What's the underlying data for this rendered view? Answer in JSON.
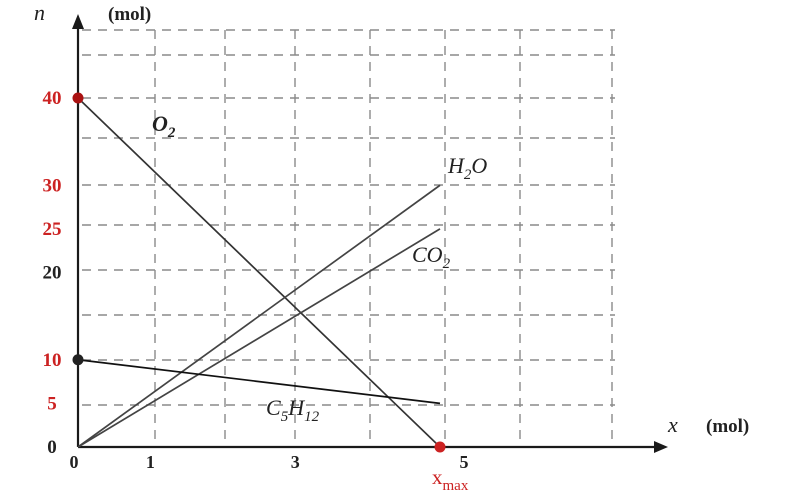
{
  "chart_data": {
    "type": "line",
    "title": "",
    "xlabel": "x",
    "xunit": "(mol)",
    "ylabel": "n",
    "yunit": "(mol)",
    "xlim": [
      0,
      5
    ],
    "ylim": [
      0,
      40
    ],
    "grid": true,
    "x_ticks": [
      {
        "value": 0,
        "label": "0"
      },
      {
        "value": 1,
        "label": "1"
      },
      {
        "value": 3,
        "label": "3"
      },
      {
        "value": 5,
        "label": "5"
      }
    ],
    "x_special": {
      "value": 5,
      "label": "x",
      "subscript": "max",
      "color": "#cc2222"
    },
    "y_ticks": [
      {
        "value": 0,
        "label": "0",
        "color": "#222222"
      },
      {
        "value": 5,
        "label": "5",
        "color": "#cc2222"
      },
      {
        "value": 10,
        "label": "10",
        "color": "#cc2222"
      },
      {
        "value": 20,
        "label": "20",
        "color": "#222222"
      },
      {
        "value": 25,
        "label": "25",
        "color": "#cc2222"
      },
      {
        "value": 30,
        "label": "30",
        "color": "#cc2222"
      },
      {
        "value": 40,
        "label": "40",
        "color": "#cc2222"
      }
    ],
    "series": [
      {
        "name": "O",
        "sub": "2",
        "upright": true,
        "x": [
          0,
          5
        ],
        "y": [
          40,
          0
        ],
        "color": "#333333"
      },
      {
        "name": "H",
        "sub": "2",
        "tail": "O",
        "x": [
          0,
          5
        ],
        "y": [
          0,
          30
        ],
        "color": "#444444"
      },
      {
        "name": "CO",
        "sub": "2",
        "x": [
          0,
          5
        ],
        "y": [
          0,
          25
        ],
        "color": "#444444"
      },
      {
        "name": "C",
        "sub": "5",
        "tail": "H",
        "sub2": "12",
        "x": [
          0,
          5
        ],
        "y": [
          10,
          5
        ],
        "color": "#111111"
      }
    ],
    "points": [
      {
        "x": 0,
        "y": 40,
        "color": "#aa1111"
      },
      {
        "x": 0,
        "y": 10,
        "color": "#222222"
      },
      {
        "x": 5,
        "y": 0,
        "color": "#cc2222"
      }
    ]
  }
}
